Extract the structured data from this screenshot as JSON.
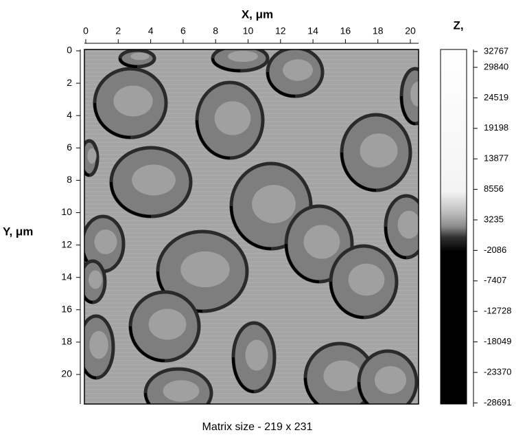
{
  "x_axis": {
    "label": "X, μm",
    "ticks": [
      0,
      2,
      4,
      6,
      8,
      10,
      12,
      14,
      16,
      18,
      20
    ]
  },
  "y_axis": {
    "label": "Y, μm",
    "ticks": [
      0,
      2,
      4,
      6,
      8,
      10,
      12,
      14,
      16,
      18,
      20
    ]
  },
  "colorbar": {
    "label": "Z,",
    "ticks": [
      32767,
      29840,
      24519,
      19198,
      13877,
      8556,
      3235,
      -2086,
      -7407,
      -12728,
      -18049,
      -23370,
      -28691
    ]
  },
  "caption": "Matrix size - 219 x 231"
}
